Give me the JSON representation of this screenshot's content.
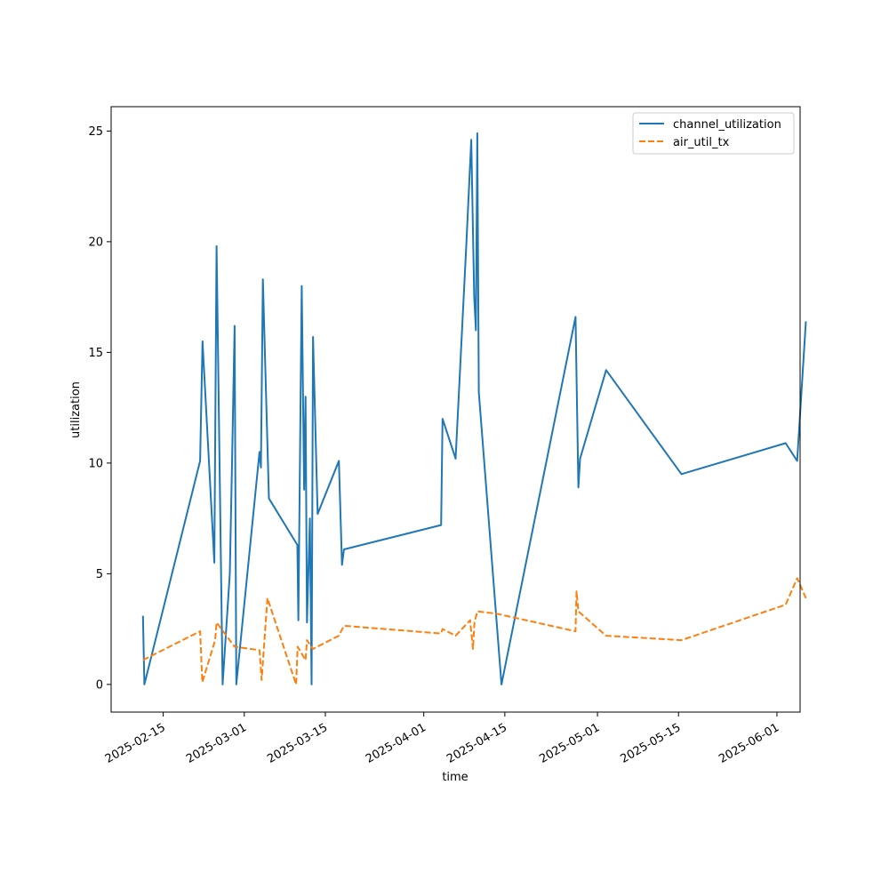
{
  "chart_data": {
    "type": "line",
    "title": "",
    "xlabel": "time",
    "ylabel": "utilization",
    "x_ticks": [
      "2025-02-15",
      "2025-03-01",
      "2025-03-15",
      "2025-04-01",
      "2025-04-15",
      "2025-05-01",
      "2025-05-15",
      "2025-06-01"
    ],
    "y_ticks": [
      0,
      5,
      10,
      15,
      20,
      25
    ],
    "xlim": [
      "2025-02-06",
      "2025-06-05"
    ],
    "ylim": [
      -1.25,
      26.1
    ],
    "grid": false,
    "legend_position": "top-right",
    "series": [
      {
        "name": "channel_utilization",
        "color": "#1f77b4",
        "style": "solid",
        "points": [
          [
            "2025-02-11T12:00",
            3.1
          ],
          [
            "2025-02-11T18:00",
            0.0
          ],
          [
            "2025-02-21T09:00",
            10.1
          ],
          [
            "2025-02-21T19:00",
            15.5
          ],
          [
            "2025-02-23T20:00",
            5.5
          ],
          [
            "2025-02-24T05:00",
            19.8
          ],
          [
            "2025-02-25T06:00",
            0.0
          ],
          [
            "2025-02-26T12:00",
            5.0
          ],
          [
            "2025-02-26T21:00",
            10.0
          ],
          [
            "2025-02-27T08:00",
            16.2
          ],
          [
            "2025-02-27T15:00",
            0.0
          ],
          [
            "2025-03-03T15:00",
            10.5
          ],
          [
            "2025-03-03T21:00",
            9.8
          ],
          [
            "2025-03-04T05:00",
            18.3
          ],
          [
            "2025-03-05T06:00",
            8.4
          ],
          [
            "2025-03-10T04:00",
            6.3
          ],
          [
            "2025-03-10T08:00",
            2.9
          ],
          [
            "2025-03-10T22:00",
            18.0
          ],
          [
            "2025-03-11T08:00",
            8.8
          ],
          [
            "2025-03-11T14:00",
            13.0
          ],
          [
            "2025-03-11T20:00",
            2.8
          ],
          [
            "2025-03-12T08:00",
            7.5
          ],
          [
            "2025-03-12T15:00",
            0.0
          ],
          [
            "2025-03-12T21:00",
            15.7
          ],
          [
            "2025-03-13T16:00",
            7.7
          ],
          [
            "2025-03-17T08:00",
            10.1
          ],
          [
            "2025-03-17T21:00",
            5.4
          ],
          [
            "2025-03-18T05:00",
            6.1
          ],
          [
            "2025-04-04T00:00",
            7.2
          ],
          [
            "2025-04-04T06:00",
            12.0
          ],
          [
            "2025-04-06T12:00",
            10.2
          ],
          [
            "2025-04-08T09:00",
            20.0
          ],
          [
            "2025-04-09T05:00",
            24.6
          ],
          [
            "2025-04-09T17:00",
            17.5
          ],
          [
            "2025-04-10T00:00",
            16.0
          ],
          [
            "2025-04-10T06:00",
            24.9
          ],
          [
            "2025-04-10T12:00",
            13.2
          ],
          [
            "2025-04-14T10:00",
            0.0
          ],
          [
            "2025-04-27T05:00",
            16.6
          ],
          [
            "2025-04-27T17:00",
            8.9
          ],
          [
            "2025-04-28T00:00",
            10.2
          ],
          [
            "2025-05-02T12:00",
            14.2
          ],
          [
            "2025-05-15T12:00",
            9.5
          ],
          [
            "2025-06-02T12:00",
            10.9
          ],
          [
            "2025-06-04T12:00",
            10.1
          ],
          [
            "2025-06-06T00:00",
            16.4
          ]
        ]
      },
      {
        "name": "air_util_tx",
        "color": "#ff7f0e",
        "style": "dashed",
        "points": [
          [
            "2025-02-11T12:00",
            1.1
          ],
          [
            "2025-02-21T09:00",
            2.4
          ],
          [
            "2025-02-21T18:00",
            0.1
          ],
          [
            "2025-02-23T23:00",
            2.0
          ],
          [
            "2025-02-24T05:00",
            2.8
          ],
          [
            "2025-02-27T08:00",
            1.7
          ],
          [
            "2025-03-03T15:00",
            1.55
          ],
          [
            "2025-03-04T00:00",
            0.2
          ],
          [
            "2025-03-05T00:00",
            3.9
          ],
          [
            "2025-03-09T23:00",
            0.0
          ],
          [
            "2025-03-10T05:00",
            1.7
          ],
          [
            "2025-03-11T14:00",
            1.1
          ],
          [
            "2025-03-11T20:00",
            2.0
          ],
          [
            "2025-03-12T20:00",
            1.6
          ],
          [
            "2025-03-17T08:00",
            2.2
          ],
          [
            "2025-03-18T05:00",
            2.65
          ],
          [
            "2025-04-03T23:00",
            2.3
          ],
          [
            "2025-04-04T06:00",
            2.5
          ],
          [
            "2025-04-06T12:00",
            2.2
          ],
          [
            "2025-04-09T00:00",
            2.9
          ],
          [
            "2025-04-09T12:00",
            1.6
          ],
          [
            "2025-04-09T18:00",
            2.8
          ],
          [
            "2025-04-10T06:00",
            3.3
          ],
          [
            "2025-04-13T12:00",
            3.2
          ],
          [
            "2025-04-27T05:00",
            2.4
          ],
          [
            "2025-04-27T09:00",
            4.2
          ],
          [
            "2025-04-27T17:00",
            3.3
          ],
          [
            "2025-05-02T12:00",
            2.2
          ],
          [
            "2025-05-15T12:00",
            2.0
          ],
          [
            "2025-06-02T12:00",
            3.6
          ],
          [
            "2025-06-04T12:00",
            4.8
          ],
          [
            "2025-06-06T00:00",
            3.9
          ]
        ]
      }
    ]
  }
}
